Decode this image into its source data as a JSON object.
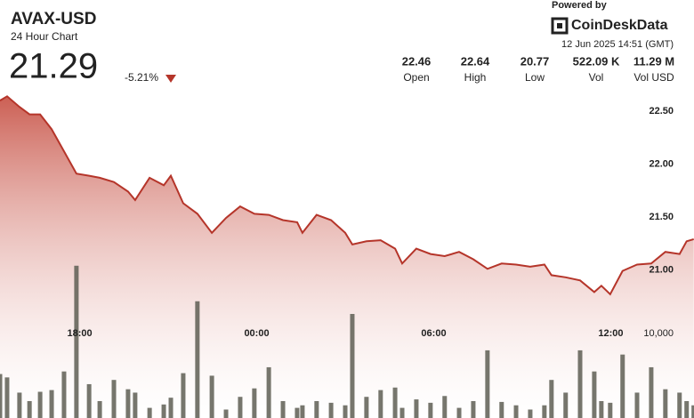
{
  "chart_data": {
    "type": "line",
    "title": "AVAX-USD",
    "subtitle": "24 Hour Chart",
    "price": 21.29,
    "change": "-5.21%",
    "stats": [
      {
        "name": "Open",
        "value": 22.46
      },
      {
        "name": "High",
        "value": 22.64
      },
      {
        "name": "Low",
        "value": 20.77
      },
      {
        "name": "Vol",
        "value": "522.09 K"
      },
      {
        "name": "Vol USD",
        "value": "11.29 M"
      }
    ],
    "powered_by": "Powered by",
    "brand": "CoinDeskData",
    "timestamp": "12 Jun 2025 14:51 (GMT)",
    "x": [
      15.3,
      15.54,
      15.96,
      16.3,
      16.66,
      17.05,
      17.47,
      17.89,
      18.32,
      18.68,
      19.16,
      19.64,
      19.88,
      20.37,
      20.85,
      21.09,
      21.51,
      21.99,
      22.48,
      22.96,
      23.44,
      23.92,
      24.41,
      24.89,
      25.37,
      25.55,
      26.03,
      26.52,
      27.0,
      27.24,
      27.72,
      28.2,
      28.69,
      28.93,
      29.41,
      29.89,
      30.37,
      30.86,
      31.34,
      31.82,
      32.3,
      32.79,
      33.27,
      33.75,
      33.99,
      34.47,
      34.96,
      35.44,
      35.68,
      35.98,
      36.4,
      36.89,
      37.37,
      37.85,
      38.33,
      38.57,
      38.81
    ],
    "series": [
      {
        "color": "#b5352a",
        "values": [
          22.6,
          22.64,
          22.54,
          22.47,
          22.47,
          22.33,
          22.12,
          21.91,
          21.89,
          21.87,
          21.83,
          21.74,
          21.66,
          21.87,
          21.8,
          21.89,
          21.63,
          21.53,
          21.35,
          21.49,
          21.6,
          21.53,
          21.52,
          21.47,
          21.45,
          21.35,
          21.52,
          21.47,
          21.35,
          21.24,
          21.27,
          21.28,
          21.2,
          21.06,
          21.2,
          21.15,
          21.13,
          21.17,
          21.1,
          21.01,
          21.06,
          21.05,
          21.03,
          21.05,
          20.95,
          20.93,
          20.9,
          20.79,
          20.85,
          20.77,
          20.99,
          21.05,
          21.06,
          21.17,
          21.15,
          21.27,
          21.29
        ]
      },
      {
        "type": "bar",
        "axis": "y2",
        "color": "#5e5e54",
        "values": [
          5200,
          4800,
          3000,
          2000,
          3100,
          3300,
          5500,
          18000,
          4000,
          2000,
          4500,
          3400,
          3000,
          1200,
          1600,
          2400,
          5300,
          13800,
          5000,
          1000,
          2500,
          3500,
          6000,
          2000,
          1200,
          1500,
          2000,
          1800,
          1500,
          12300,
          2500,
          3300,
          3600,
          1200,
          2200,
          1800,
          2600,
          1200,
          2000,
          8000,
          1900,
          1500,
          1000,
          1500,
          4500,
          3000,
          8000,
          5500,
          2000,
          1800,
          7500,
          3000,
          6000,
          3400,
          3000,
          2000,
          1500
        ]
      }
    ],
    "xlim": [
      15.3,
      38.82
    ],
    "xticks": [
      {
        "value": 18,
        "label": "18:00"
      },
      {
        "value": 24,
        "label": "00:00"
      },
      {
        "value": 30,
        "label": "06:00"
      },
      {
        "value": 36,
        "label": "12:00"
      }
    ],
    "ylim": [
      19.6,
      22.71
    ],
    "yticks": [
      {
        "value": 21,
        "label": "21.00"
      },
      {
        "value": 21.5,
        "label": "21.50"
      },
      {
        "value": 22,
        "label": "22.00"
      },
      {
        "value": 22.5,
        "label": "22.50"
      }
    ],
    "y2lim": [
      0,
      38900
    ],
    "y2ticks": [
      {
        "value": 10000,
        "label": "10,000"
      }
    ],
    "grid": false
  }
}
